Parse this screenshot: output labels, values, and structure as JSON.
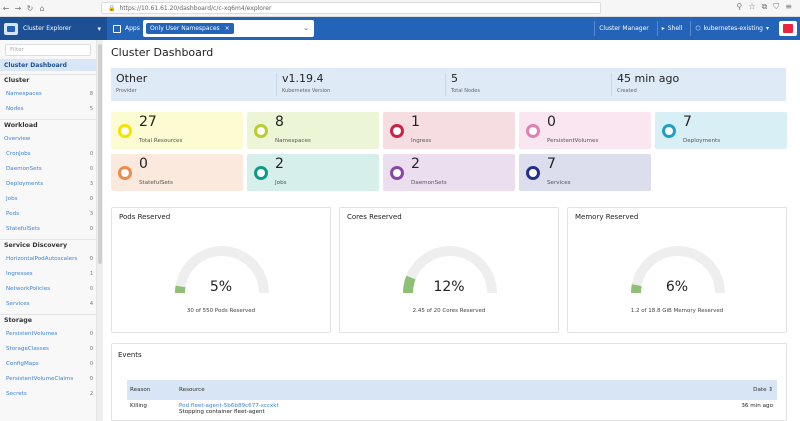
{
  "browser": {
    "url": "https://10.61.61.20/dashboard/c/c-xq6m4/explorer"
  },
  "header": {
    "product_title": "Cluster Explorer",
    "apps_label": "Apps",
    "namespace_filter": "Only User Namespaces",
    "cluster_manager_label": "Cluster Manager",
    "shell_label": "Shell",
    "cluster_name": "kubernetes-existing"
  },
  "sidebar": {
    "search_placeholder": "Filter",
    "active": "Cluster Dashboard",
    "groups": [
      {
        "title": "Cluster",
        "items": [
          {
            "label": "Namespaces",
            "count": "8"
          },
          {
            "label": "Nodes",
            "count": "5"
          }
        ]
      },
      {
        "title": "Workload",
        "items": [
          {
            "label": "Overview",
            "count": ""
          },
          {
            "label": "CronJobs",
            "count": "0"
          },
          {
            "label": "DaemonSets",
            "count": "0"
          },
          {
            "label": "Deployments",
            "count": "3"
          },
          {
            "label": "Jobs",
            "count": "0"
          },
          {
            "label": "Pods",
            "count": "3"
          },
          {
            "label": "StatefulSets",
            "count": "0"
          }
        ]
      },
      {
        "title": "Service Discovery",
        "items": [
          {
            "label": "HorizontalPodAutoscalers",
            "count": "0"
          },
          {
            "label": "Ingresses",
            "count": "1"
          },
          {
            "label": "NetworkPolicies",
            "count": "0"
          },
          {
            "label": "Services",
            "count": "4"
          }
        ]
      },
      {
        "title": "Storage",
        "items": [
          {
            "label": "PersistentVolumes",
            "count": "0"
          },
          {
            "label": "StorageClasses",
            "count": "0"
          },
          {
            "label": "ConfigMaps",
            "count": "0"
          },
          {
            "label": "PersistentVolumeClaims",
            "count": "0"
          },
          {
            "label": "Secrets",
            "count": "2"
          }
        ]
      }
    ]
  },
  "main": {
    "title": "Cluster Dashboard",
    "info": [
      {
        "value": "Other",
        "label": "Provider"
      },
      {
        "value": "v1.19.4",
        "label": "Kubernetes Version"
      },
      {
        "value": "5",
        "label": "Total Nodes"
      },
      {
        "value": "45 min ago",
        "label": "Created"
      }
    ],
    "cards": [
      {
        "value": "27",
        "label": "Total Resources",
        "color": "#f3e400",
        "bg": "#fcfbd2"
      },
      {
        "value": "8",
        "label": "Namespaces",
        "color": "#b9cd2c",
        "bg": "#edf5d7"
      },
      {
        "value": "1",
        "label": "Ingress",
        "color": "#cc2246",
        "bg": "#f6dde2"
      },
      {
        "value": "0",
        "label": "PersistentVolumes",
        "color": "#e27fb4",
        "bg": "#f9e6f0"
      },
      {
        "value": "7",
        "label": "Deployments",
        "color": "#1e9fc8",
        "bg": "#d9eff6"
      },
      {
        "value": "0",
        "label": "StatefulSets",
        "color": "#ef8a4b",
        "bg": "#fbe9dd"
      },
      {
        "value": "2",
        "label": "Jobs",
        "color": "#0f9a88",
        "bg": "#d6efea"
      },
      {
        "value": "2",
        "label": "DaemonSets",
        "color": "#8a46a6",
        "bg": "#ebdfef"
      },
      {
        "value": "7",
        "label": "Services",
        "color": "#24328c",
        "bg": "#dcdded"
      }
    ],
    "gauges": [
      {
        "title": "Pods Reserved",
        "percent": "5%",
        "fraction": 0.05,
        "detail": "30 of 550 Pods Reserved"
      },
      {
        "title": "Cores Reserved",
        "percent": "12%",
        "fraction": 0.12,
        "detail": "2.45 of 20 Cores Reserved"
      },
      {
        "title": "Memory Reserved",
        "percent": "6%",
        "fraction": 0.06,
        "detail": "1.2 of 18.8 GiB Memory Reserved"
      }
    ],
    "events": {
      "title": "Events",
      "headers": {
        "reason": "Reason",
        "resource": "Resource",
        "date": "Date"
      },
      "rows": [
        {
          "reason": "Killing",
          "resource": "Pod fleet-agent-5b6b89c677-sccxkt",
          "message": "Stopping container fleet-agent",
          "date": "36 min ago"
        }
      ]
    }
  },
  "colors": {
    "header_blue": "#2364b8",
    "gauge_green": "#8dbf74",
    "gauge_grey": "#eeeeee"
  }
}
